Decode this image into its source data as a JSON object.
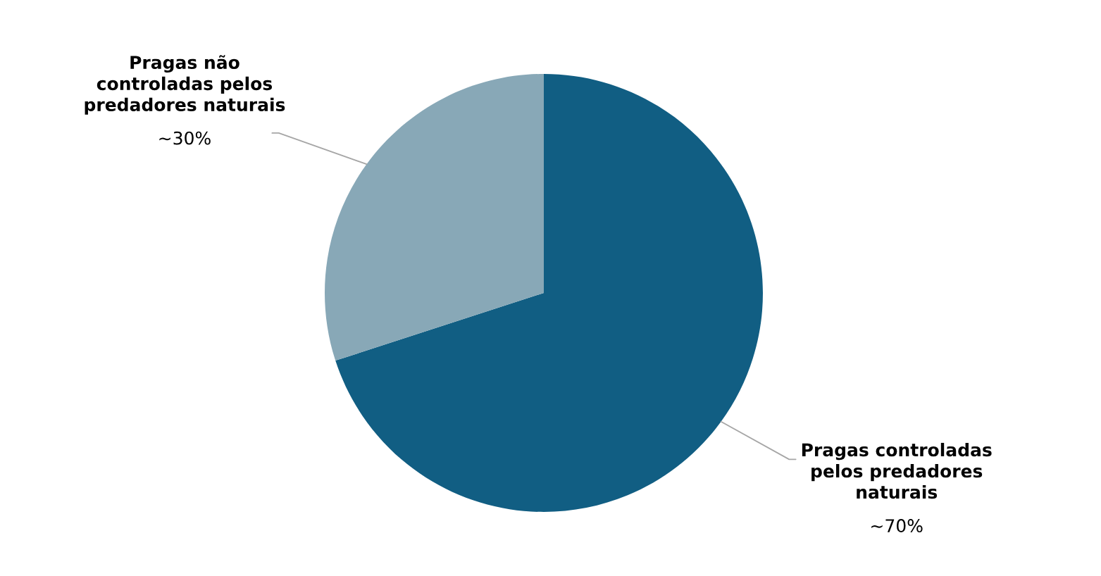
{
  "chart_data": {
    "type": "pie",
    "categories": [
      "Pragas controladas\npelos predadores\nnaturais",
      "Pragas não\ncontroladas pelos\npredadores naturais"
    ],
    "values": [
      70,
      30
    ],
    "colors": [
      "#115e83",
      "#88a8b7"
    ],
    "value_labels": [
      "~70%",
      "~30%"
    ]
  }
}
